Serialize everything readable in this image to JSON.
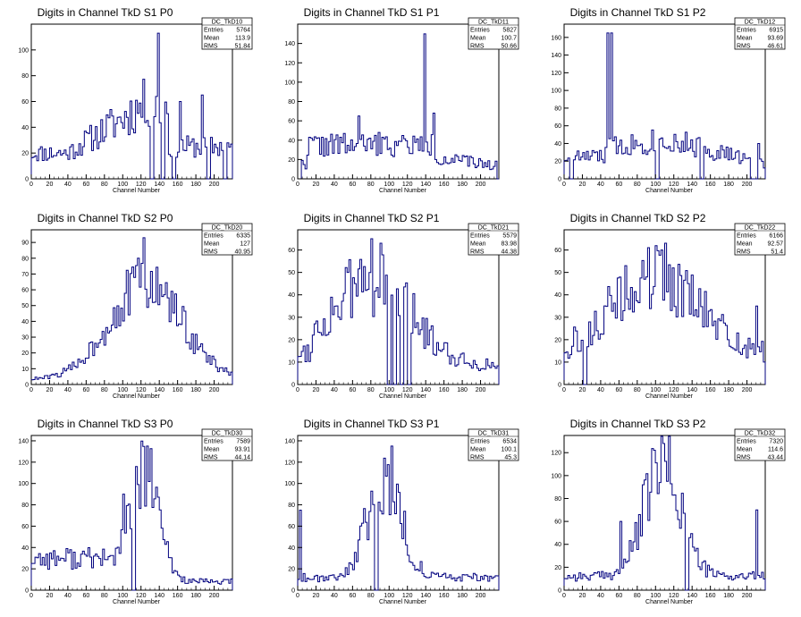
{
  "chart_data": [
    {
      "type": "histogram",
      "title": "Digits in Channel TkD S1 P0",
      "xlabel": "Channel Number",
      "ylabel": "",
      "xlim": [
        0,
        220
      ],
      "ylim": [
        0,
        120
      ],
      "xticks": [
        0,
        20,
        40,
        60,
        80,
        100,
        120,
        140,
        160,
        180,
        200
      ],
      "yticks": [
        0,
        20,
        40,
        60,
        80,
        100
      ],
      "stats": {
        "name": "DC_TkD10",
        "entries": "5764",
        "mean": "113.9",
        "rms": "51.84"
      },
      "profile": "s1p0"
    },
    {
      "type": "histogram",
      "title": "Digits in Channel TkD S1 P1",
      "xlabel": "Channel Number",
      "ylabel": "",
      "xlim": [
        0,
        220
      ],
      "ylim": [
        0,
        160
      ],
      "xticks": [
        0,
        20,
        40,
        60,
        80,
        100,
        120,
        140,
        160,
        180,
        200
      ],
      "yticks": [
        0,
        20,
        40,
        60,
        80,
        100,
        120,
        140
      ],
      "stats": {
        "name": "DC_TkD11",
        "entries": "5827",
        "mean": "100.7",
        "rms": "50.66"
      },
      "profile": "s1p1"
    },
    {
      "type": "histogram",
      "title": "Digits in Channel TkD S1 P2",
      "xlabel": "Channel Number",
      "ylabel": "",
      "xlim": [
        0,
        220
      ],
      "ylim": [
        0,
        175
      ],
      "xticks": [
        0,
        20,
        40,
        60,
        80,
        100,
        120,
        140,
        160,
        180,
        200
      ],
      "yticks": [
        0,
        20,
        40,
        60,
        80,
        100,
        120,
        140,
        160
      ],
      "stats": {
        "name": "DC_TkD12",
        "entries": "6915",
        "mean": "93.69",
        "rms": "46.61"
      },
      "profile": "s1p2"
    },
    {
      "type": "histogram",
      "title": "Digits in Channel TkD S2 P0",
      "xlabel": "Channel Number",
      "ylabel": "",
      "xlim": [
        0,
        220
      ],
      "ylim": [
        0,
        98
      ],
      "xticks": [
        0,
        20,
        40,
        60,
        80,
        100,
        120,
        140,
        160,
        180,
        200
      ],
      "yticks": [
        0,
        10,
        20,
        30,
        40,
        50,
        60,
        70,
        80,
        90
      ],
      "stats": {
        "name": "DC_TkD20",
        "entries": "6335",
        "mean": "127",
        "rms": "40.95"
      },
      "profile": "s2p0"
    },
    {
      "type": "histogram",
      "title": "Digits in Channel TkD S2 P1",
      "xlabel": "Channel Number",
      "ylabel": "",
      "xlim": [
        0,
        220
      ],
      "ylim": [
        0,
        69
      ],
      "xticks": [
        0,
        20,
        40,
        60,
        80,
        100,
        120,
        140,
        160,
        180,
        200
      ],
      "yticks": [
        0,
        10,
        20,
        30,
        40,
        50,
        60
      ],
      "stats": {
        "name": "DC_TkD21",
        "entries": "5579",
        "mean": "83.98",
        "rms": "44.38"
      },
      "profile": "s2p1"
    },
    {
      "type": "histogram",
      "title": "Digits in Channel TkD S2 P2",
      "xlabel": "Channel Number",
      "ylabel": "",
      "xlim": [
        0,
        220
      ],
      "ylim": [
        0,
        69
      ],
      "xticks": [
        0,
        20,
        40,
        60,
        80,
        100,
        120,
        140,
        160,
        180,
        200
      ],
      "yticks": [
        0,
        10,
        20,
        30,
        40,
        50,
        60
      ],
      "stats": {
        "name": "DC_TkD22",
        "entries": "6166",
        "mean": "92.57",
        "rms": "51.4"
      },
      "profile": "s2p2"
    },
    {
      "type": "histogram",
      "title": "Digits in Channel TkD S3 P0",
      "xlabel": "Channel Number",
      "ylabel": "",
      "xlim": [
        0,
        220
      ],
      "ylim": [
        0,
        145
      ],
      "xticks": [
        0,
        20,
        40,
        60,
        80,
        100,
        120,
        140,
        160,
        180,
        200
      ],
      "yticks": [
        0,
        20,
        40,
        60,
        80,
        100,
        120,
        140
      ],
      "stats": {
        "name": "DC_TkD30",
        "entries": "7589",
        "mean": "93.91",
        "rms": "44.14"
      },
      "profile": "s3p0"
    },
    {
      "type": "histogram",
      "title": "Digits in Channel TkD S3 P1",
      "xlabel": "Channel Number",
      "ylabel": "",
      "xlim": [
        0,
        220
      ],
      "ylim": [
        0,
        145
      ],
      "xticks": [
        0,
        20,
        40,
        60,
        80,
        100,
        120,
        140,
        160,
        180,
        200
      ],
      "yticks": [
        0,
        20,
        40,
        60,
        80,
        100,
        120,
        140
      ],
      "stats": {
        "name": "DC_TkD31",
        "entries": "6534",
        "mean": "100.1",
        "rms": "45.3"
      },
      "profile": "s3p1"
    },
    {
      "type": "histogram",
      "title": "Digits in Channel TkD S3 P2",
      "xlabel": "Channel Number",
      "ylabel": "",
      "xlim": [
        0,
        220
      ],
      "ylim": [
        0,
        135
      ],
      "xticks": [
        0,
        20,
        40,
        60,
        80,
        100,
        120,
        140,
        160,
        180,
        200
      ],
      "yticks": [
        0,
        20,
        40,
        60,
        80,
        100,
        120
      ],
      "stats": {
        "name": "DC_TkD32",
        "entries": "7320",
        "mean": "114.6",
        "rms": "43.44"
      },
      "profile": "s3p2"
    }
  ],
  "stat_labels": {
    "entries": "Entries",
    "mean": "Mean",
    "rms": "RMS"
  },
  "colors": {
    "line": "#00007f",
    "axis": "#000000",
    "background": "#ffffff"
  }
}
